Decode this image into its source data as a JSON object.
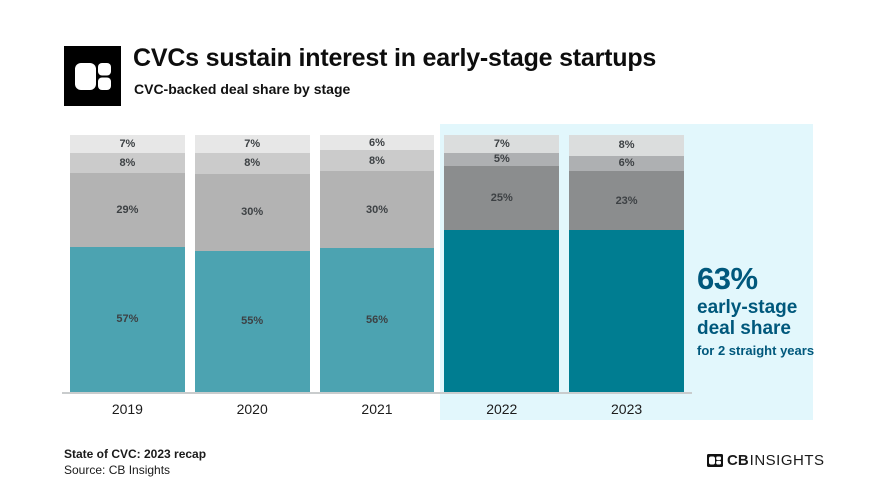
{
  "header": {
    "title": "CVCs sustain interest in early-stage startups",
    "subtitle": "CVC-backed deal share by stage"
  },
  "annotation": {
    "headline": "63%",
    "line1": "early-stage",
    "line2": "deal share",
    "subline": "for 2 straight years",
    "color": "#00587c"
  },
  "footer": {
    "report_title": "State of CVC: 2023 recap",
    "source": "Source: CB Insights",
    "brand_cb": "CB",
    "brand_insights": "INSIGHTS"
  },
  "icons": {
    "brand_mark": "cb-insights-logo-mark"
  },
  "colors": {
    "highlight_band_bg": "#e2f7fc",
    "teal_normal": "#4ca3b1",
    "teal_highlighted": "#007d91",
    "annotation_text": "#00587c",
    "baseline": "#c9cccd",
    "logo_bg": "#000000"
  },
  "chart_data": {
    "type": "bar",
    "stacked": true,
    "title": "CVCs sustain interest in early-stage startups",
    "subtitle": "CVC-backed deal share by stage",
    "categories": [
      "2019",
      "2020",
      "2021",
      "2022",
      "2023"
    ],
    "unit": "%",
    "series": [
      {
        "name": "early-stage (teal)",
        "values": [
          57,
          55,
          56,
          63,
          63
        ],
        "color": "#4ca3b1",
        "color_highlighted": "#007d91",
        "hide_label_when_highlighted": true
      },
      {
        "name": "mid gray segment",
        "values": [
          29,
          30,
          30,
          25,
          23
        ],
        "color": "#b3b3b3",
        "color_highlighted": "#8b8d8e"
      },
      {
        "name": "light gray segment",
        "values": [
          8,
          8,
          8,
          5,
          6
        ],
        "color": "#cbcbcb",
        "color_highlighted": "#aeb0b2"
      },
      {
        "name": "lightest gray segment",
        "values": [
          7,
          7,
          6,
          7,
          8
        ],
        "color": "#e7e7e7",
        "color_highlighted": "#dbdddd"
      }
    ],
    "highlighted_categories": [
      "2022",
      "2023"
    ],
    "highlight_annotation": "63% early-stage deal share for 2 straight years",
    "legend": "none",
    "grid": "off",
    "value_labels": "inside segments",
    "ylim": [
      0,
      100
    ]
  }
}
